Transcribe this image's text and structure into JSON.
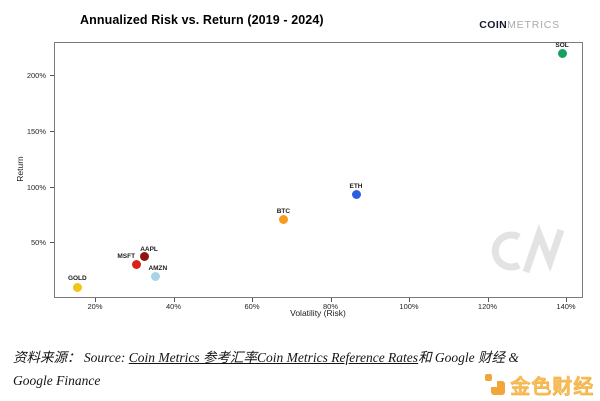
{
  "header": {
    "title": "Annualized Risk vs. Return (2019 - 2024)",
    "logo_bold": "COIN",
    "logo_light": "METRICS"
  },
  "chart_data": {
    "type": "scatter",
    "title": "Annualized Risk vs. Return (2019 - 2024)",
    "xlabel": "Volatility (Risk)",
    "ylabel": "Return",
    "x_tick_values": [
      20,
      40,
      60,
      80,
      100,
      120,
      140
    ],
    "x_tick_labels": [
      "20%",
      "40%",
      "60%",
      "80%",
      "100%",
      "120%",
      "140%"
    ],
    "y_tick_values": [
      50,
      100,
      150,
      200
    ],
    "y_tick_labels": [
      "50%",
      "100%",
      "150%",
      "200%"
    ],
    "xlim": [
      9.5,
      144
    ],
    "ylim": [
      0,
      230
    ],
    "grid": false,
    "legend": "none",
    "points": [
      {
        "label": "GOLD",
        "x": 15.5,
        "y": 9,
        "color": "#f2c413"
      },
      {
        "label": "MSFT",
        "x": 30.5,
        "y": 30,
        "color": "#dd2018"
      },
      {
        "label": "AAPL",
        "x": 32.5,
        "y": 37,
        "color": "#8e150d"
      },
      {
        "label": "AMZN",
        "x": 35.5,
        "y": 19.5,
        "color": "#a9d3e6"
      },
      {
        "label": "BTC",
        "x": 68,
        "y": 70.5,
        "color": "#f79a1f"
      },
      {
        "label": "ETH",
        "x": 86.5,
        "y": 92.5,
        "color": "#2c5fe0"
      },
      {
        "label": "SOL",
        "x": 139,
        "y": 219,
        "color": "#17a15e"
      }
    ]
  },
  "watermarks": {
    "plot_mark": "CM",
    "brand_text": "金色财经"
  },
  "footer": {
    "prefix": "资料来源：  Source: ",
    "underlined": "Coin Metrics 参考汇率Coin Metrics Reference Rates",
    "suffix": "和 Google 财经 &",
    "line2": "Google Finance"
  }
}
